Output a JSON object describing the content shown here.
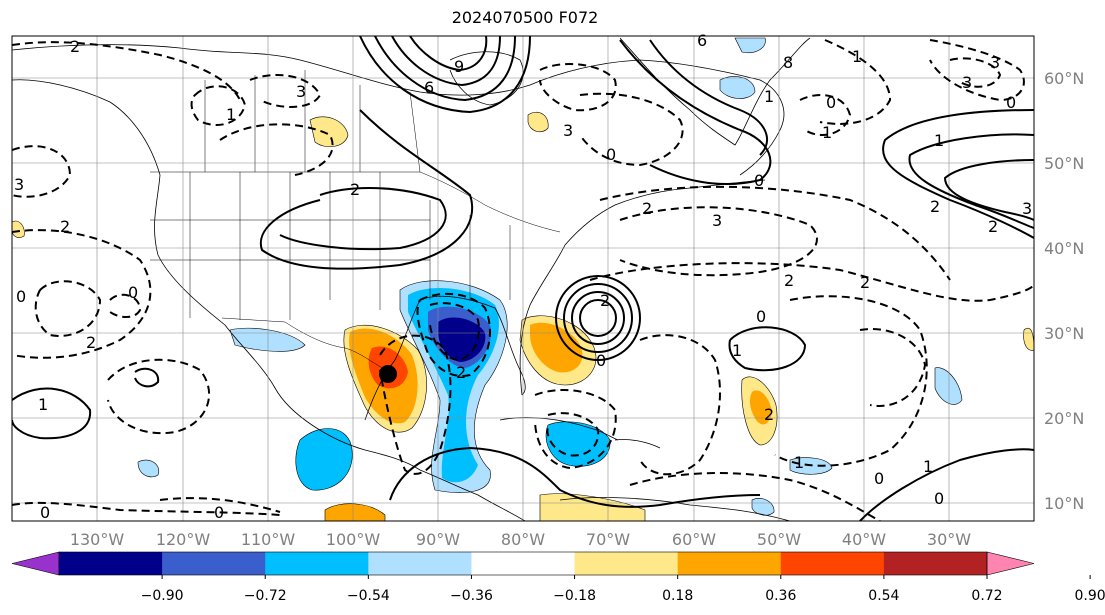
{
  "title": "2024070500 F072",
  "map": {
    "lon_labels": [
      "130°W",
      "120°W",
      "110°W",
      "100°W",
      "90°W",
      "80°W",
      "70°W",
      "60°W",
      "50°W",
      "40°W",
      "30°W"
    ],
    "lat_labels": [
      "60°N",
      "50°N",
      "40°N",
      "30°N",
      "20°N",
      "10°N"
    ],
    "contour_labels": [
      {
        "text": "2"
      },
      {
        "text": "3"
      },
      {
        "text": "6"
      },
      {
        "text": "9"
      },
      {
        "text": "6"
      },
      {
        "text": "8"
      },
      {
        "text": "3"
      },
      {
        "text": "3"
      },
      {
        "text": "3"
      },
      {
        "text": "0"
      },
      {
        "text": "1"
      },
      {
        "text": "0"
      },
      {
        "text": "1"
      },
      {
        "text": "1"
      },
      {
        "text": "2"
      },
      {
        "text": "0"
      },
      {
        "text": "2"
      },
      {
        "text": "2"
      },
      {
        "text": "2"
      },
      {
        "text": "2"
      },
      {
        "text": "3"
      },
      {
        "text": "2"
      },
      {
        "text": "2"
      },
      {
        "text": "3"
      },
      {
        "text": "0"
      },
      {
        "text": "0"
      },
      {
        "text": "2"
      },
      {
        "text": "0"
      },
      {
        "text": "1"
      },
      {
        "text": "2"
      },
      {
        "text": "0"
      },
      {
        "text": "1"
      },
      {
        "text": "2"
      },
      {
        "text": "1"
      },
      {
        "text": "0"
      },
      {
        "text": "0"
      },
      {
        "text": "0"
      },
      {
        "text": "1"
      },
      {
        "text": "0"
      },
      {
        "text": "2"
      },
      {
        "text": "3"
      },
      {
        "text": "1"
      },
      {
        "text": "1"
      },
      {
        "text": "0"
      }
    ],
    "colors": {
      "hi_pos": [
        "#ffe88a",
        "#ffa500",
        "#ff4500",
        "#b22222",
        "#ff85b0"
      ],
      "hi_neg": [
        "#b0e0ff",
        "#00bfff",
        "#3a5fcd",
        "#00008b",
        "#9932cc"
      ]
    }
  },
  "colorbar": {
    "ticks": [
      "−0.90",
      "−0.72",
      "−0.54",
      "−0.36",
      "−0.18",
      "0.18",
      "0.36",
      "0.54",
      "0.72",
      "0.90"
    ],
    "colors": [
      "#9932cc",
      "#00008b",
      "#3a5fcd",
      "#00bfff",
      "#b0e0ff",
      "#ffffff",
      "#ffe88a",
      "#ffa500",
      "#ff4500",
      "#b22222",
      "#ff85b0"
    ]
  }
}
